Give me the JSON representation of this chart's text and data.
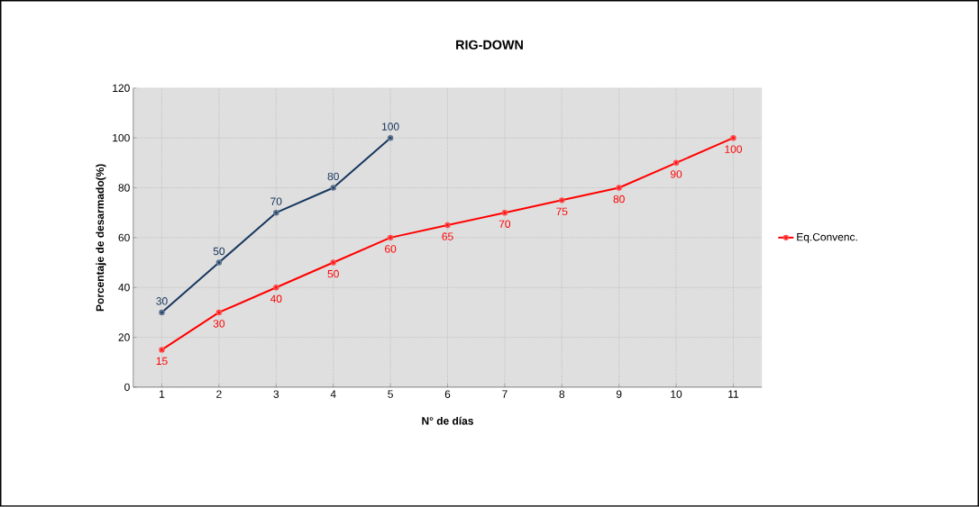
{
  "chart_data": {
    "type": "line",
    "title": "RIG-DOWN",
    "xlabel": "N° de días",
    "ylabel": "Porcentaje de desarmado(%)",
    "categories": [
      "1",
      "2",
      "3",
      "4",
      "5",
      "6",
      "7",
      "8",
      "9",
      "10",
      "11"
    ],
    "series": [
      {
        "color": "#17375e",
        "values": [
          30,
          50,
          70,
          80,
          100,
          null,
          null,
          null,
          null,
          null,
          null
        ]
      },
      {
        "name": "Eq.Convenc.",
        "color": "#ff0000",
        "values": [
          15,
          30,
          40,
          50,
          60,
          65,
          70,
          75,
          80,
          90,
          100
        ]
      }
    ],
    "ylim": [
      0,
      120
    ],
    "yticks": [
      0,
      20,
      40,
      60,
      80,
      100,
      120
    ],
    "grid": true,
    "legend": "right",
    "marker": "circle",
    "line_style": "solid",
    "data_labels": true
  }
}
